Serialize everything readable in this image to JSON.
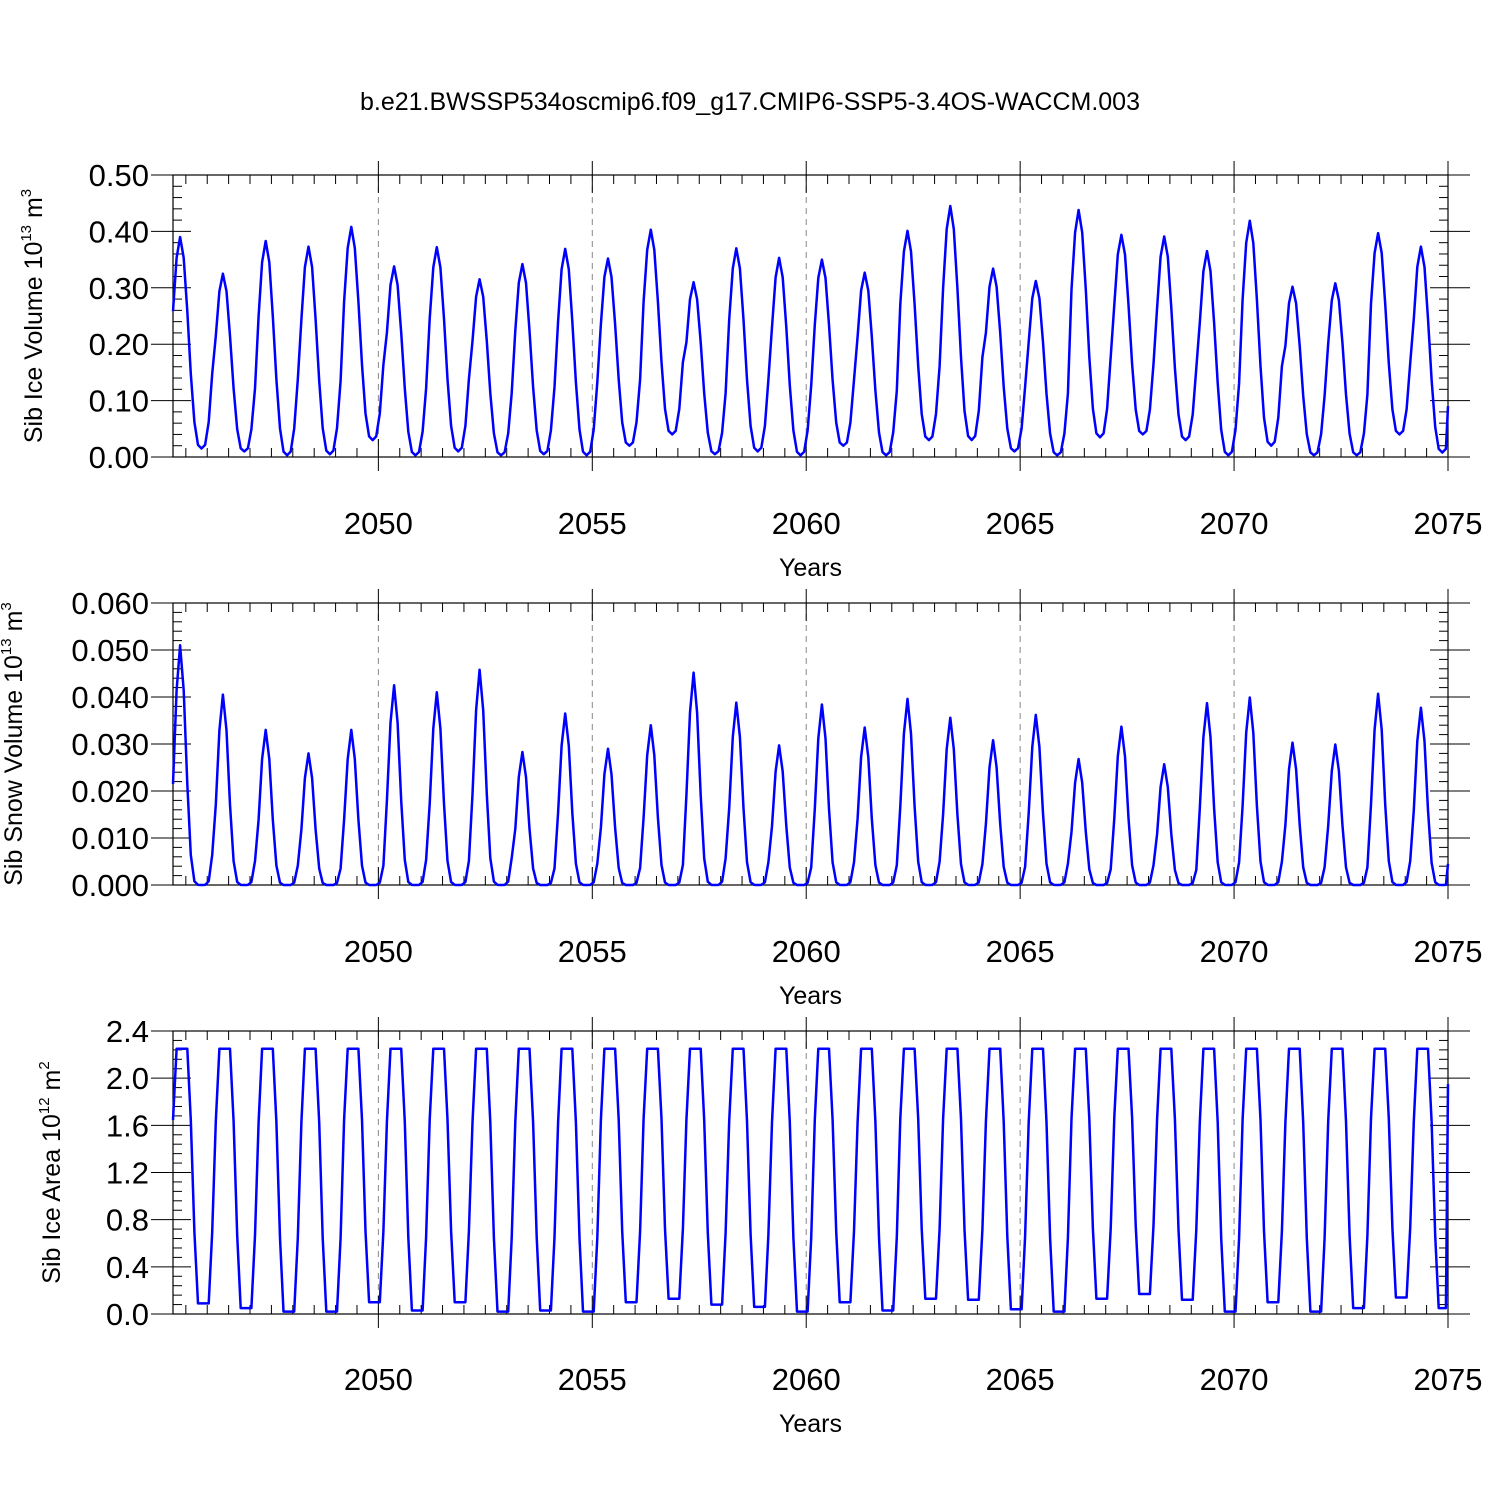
{
  "title": "b.e21.BWSSP534oscmip6.f09_g17.CMIP6-SSP5-3.4OS-WACCM.003",
  "line_color": "#0000ff",
  "chart_data": [
    {
      "type": "line",
      "ylabel": {
        "text": "Sib Ice Volume 10",
        "exponent": "13",
        "unit": " m",
        "unit_exponent": "3"
      },
      "xlabel": "Years",
      "xlim": [
        2045.2,
        2075.0
      ],
      "ylim": [
        0.0,
        0.5
      ],
      "yticks": [
        0.0,
        0.1,
        0.2,
        0.3,
        0.4,
        0.5
      ],
      "ytick_labels": [
        "0.00",
        "0.10",
        "0.20",
        "0.30",
        "0.40",
        "0.50"
      ],
      "xticks": [
        2050,
        2055,
        2060,
        2065,
        2070,
        2075
      ],
      "xtick_labels": [
        "2050",
        "2055",
        "2060",
        "2065",
        "2070",
        "2075"
      ],
      "start_year": 2045.2,
      "winter_peaks": [
        0.39,
        0.325,
        0.383,
        0.373,
        0.408,
        0.338,
        0.372,
        0.315,
        0.342,
        0.369,
        0.352,
        0.403,
        0.31,
        0.37,
        0.353,
        0.35,
        0.327,
        0.401,
        0.445,
        0.334,
        0.312,
        0.438,
        0.394,
        0.391,
        0.365,
        0.419,
        0.302,
        0.308,
        0.397,
        0.373
      ],
      "summer_minima": [
        0.015,
        0.01,
        0.003,
        0.005,
        0.03,
        0.003,
        0.01,
        0.003,
        0.005,
        0.003,
        0.02,
        0.04,
        0.005,
        0.01,
        0.003,
        0.02,
        0.003,
        0.03,
        0.03,
        0.01,
        0.003,
        0.035,
        0.04,
        0.03,
        0.003,
        0.02,
        0.003,
        0.003,
        0.04,
        0.008
      ],
      "end_value": 0.09
    },
    {
      "type": "line",
      "ylabel": {
        "text": "Sib Snow Volume 10",
        "exponent": "13",
        "unit": " m",
        "unit_exponent": "3"
      },
      "xlabel": "Years",
      "xlim": [
        2045.2,
        2075.0
      ],
      "ylim": [
        0.0,
        0.06
      ],
      "yticks": [
        0.0,
        0.01,
        0.02,
        0.03,
        0.04,
        0.05,
        0.06
      ],
      "ytick_labels": [
        "0.000",
        "0.010",
        "0.020",
        "0.030",
        "0.040",
        "0.050",
        "0.060"
      ],
      "xticks": [
        2050,
        2055,
        2060,
        2065,
        2070,
        2075
      ],
      "xtick_labels": [
        "2050",
        "2055",
        "2060",
        "2065",
        "2070",
        "2075"
      ],
      "start_year": 2045.2,
      "winter_peaks": [
        0.051,
        0.0405,
        0.033,
        0.028,
        0.033,
        0.0425,
        0.041,
        0.0458,
        0.0283,
        0.0365,
        0.029,
        0.034,
        0.0452,
        0.0388,
        0.0297,
        0.0384,
        0.0335,
        0.0396,
        0.0356,
        0.0308,
        0.0362,
        0.0268,
        0.0337,
        0.0257,
        0.0387,
        0.0399,
        0.0303,
        0.0299,
        0.0407,
        0.0377
      ],
      "summer_minima": [
        0,
        0,
        0,
        0,
        0,
        0,
        0,
        0,
        0,
        0,
        0,
        0,
        0,
        0,
        0,
        0,
        0,
        0,
        0,
        0,
        0,
        0,
        0,
        0,
        0,
        0,
        0,
        0,
        0,
        0
      ],
      "end_value": 0.0045
    },
    {
      "type": "line",
      "ylabel": {
        "text": "Sib Ice Area 10",
        "exponent": "12",
        "unit": " m",
        "unit_exponent": "2"
      },
      "xlabel": "Years",
      "xlim": [
        2045.2,
        2075.0
      ],
      "ylim": [
        0.0,
        2.4
      ],
      "yticks": [
        0.0,
        0.4,
        0.8,
        1.2,
        1.6,
        2.0,
        2.4
      ],
      "ytick_labels": [
        "0.0",
        "0.4",
        "0.8",
        "1.2",
        "1.6",
        "2.0",
        "2.4"
      ],
      "xticks": [
        2050,
        2055,
        2060,
        2065,
        2070,
        2075
      ],
      "xtick_labels": [
        "2050",
        "2055",
        "2060",
        "2065",
        "2070",
        "2075"
      ],
      "start_year": 2045.2,
      "winter_peaks": [
        2.25,
        2.25,
        2.25,
        2.25,
        2.25,
        2.25,
        2.25,
        2.25,
        2.25,
        2.25,
        2.25,
        2.25,
        2.25,
        2.25,
        2.25,
        2.25,
        2.25,
        2.25,
        2.25,
        2.25,
        2.25,
        2.25,
        2.25,
        2.25,
        2.25,
        2.25,
        2.25,
        2.25,
        2.25,
        2.25
      ],
      "summer_minima": [
        0.09,
        0.05,
        0.02,
        0.02,
        0.1,
        0.03,
        0.1,
        0.02,
        0.03,
        0.02,
        0.1,
        0.13,
        0.08,
        0.06,
        0.02,
        0.1,
        0.03,
        0.13,
        0.12,
        0.04,
        0.02,
        0.13,
        0.17,
        0.12,
        0.02,
        0.1,
        0.02,
        0.05,
        0.14,
        0.05
      ],
      "end_value": 1.95
    }
  ]
}
